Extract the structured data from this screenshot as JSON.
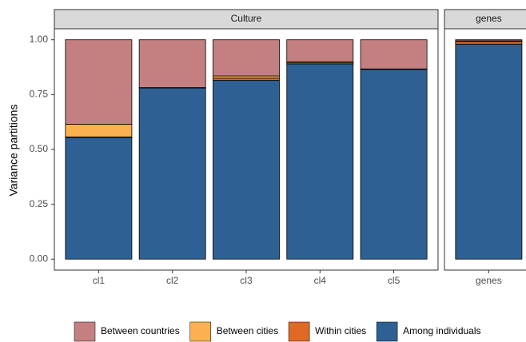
{
  "chart_data": {
    "type": "bar",
    "stacked": true,
    "y_label": "Variance partitions",
    "facets": [
      {
        "title": "Culture",
        "categories": [
          "cl1",
          "cl2",
          "cl3",
          "cl4",
          "cl5"
        ]
      },
      {
        "title": "genes",
        "categories": [
          "genes"
        ]
      }
    ],
    "series": [
      {
        "name": "Among individuals",
        "color": "#2e6093",
        "values": [
          0.555,
          0.78,
          0.815,
          0.89,
          0.865,
          0.98
        ]
      },
      {
        "name": "Within cities",
        "color": "#e06926",
        "values": [
          0.002,
          0.001,
          0.01,
          0.005,
          0.001,
          0.012
        ]
      },
      {
        "name": "Between cities",
        "color": "#fdb04f",
        "values": [
          0.058,
          0.001,
          0.01,
          0.005,
          0.001,
          0.003
        ]
      },
      {
        "name": "Between countries",
        "color": "#c48081",
        "values": [
          0.385,
          0.218,
          0.165,
          0.1,
          0.133,
          0.005
        ]
      }
    ],
    "legend_order": [
      3,
      2,
      1,
      0
    ],
    "ylim": [
      -0.05,
      1.05
    ],
    "yticks": [
      {
        "value": 0,
        "label": "0.00"
      },
      {
        "value": 0.25,
        "label": "0.25"
      },
      {
        "value": 0.5,
        "label": "0.50"
      },
      {
        "value": 0.75,
        "label": "0.75"
      },
      {
        "value": 1,
        "label": "1.00"
      }
    ],
    "legend_position": "bottom"
  }
}
